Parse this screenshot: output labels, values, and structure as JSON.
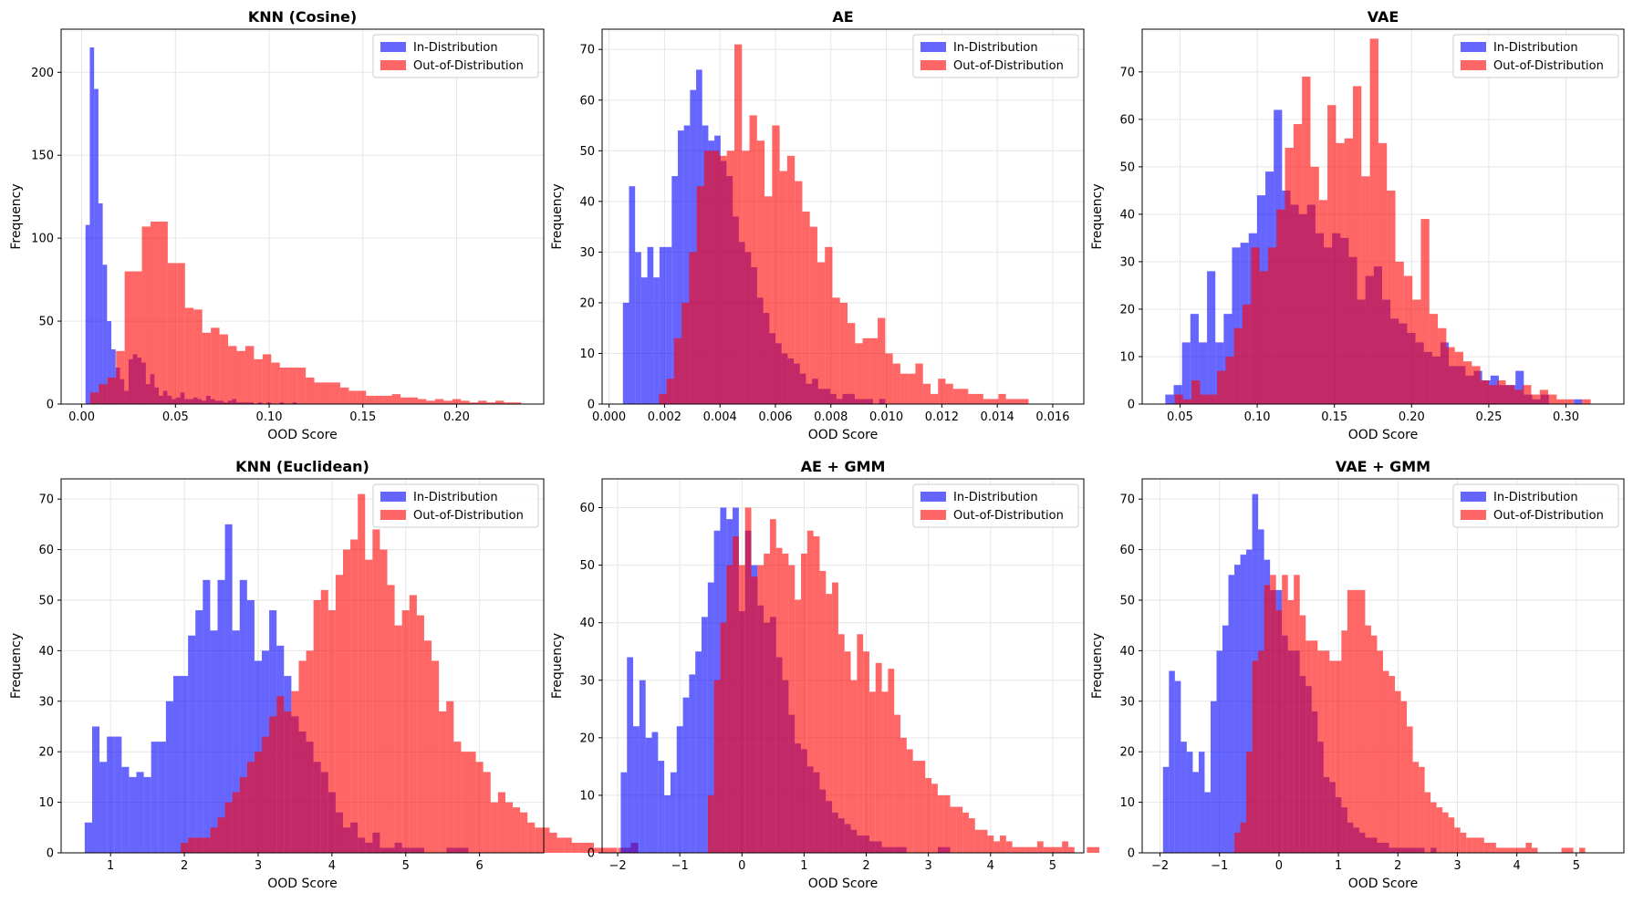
{
  "figure": {
    "legend_labels": [
      "In-Distribution",
      "Out-of-Distribution"
    ],
    "colors": {
      "in": "#0000ff",
      "out": "#ff0000",
      "overlap": "#c0245a",
      "grid": "#e6e6e6"
    },
    "bar_alpha": 0.6
  },
  "chart_data": [
    {
      "type": "bar",
      "title": "KNN (Cosine)",
      "xlabel": "OOD Score",
      "ylabel": "Frequency",
      "xlim": [
        -0.011,
        0.2465
      ],
      "ylim": [
        0,
        226
      ],
      "xticks": [
        0.0,
        0.05,
        0.1,
        0.15,
        0.2
      ],
      "xtick_labels": [
        "0.00",
        "0.05",
        "0.10",
        "0.15",
        "0.20"
      ],
      "yticks": [
        0,
        50,
        100,
        150,
        200
      ],
      "ytick_labels": [
        "0",
        "50",
        "100",
        "150",
        "200"
      ],
      "legend": "top-right",
      "grid": true,
      "series": [
        {
          "name": "In-Distribution",
          "start": 0.002,
          "width": 0.0023,
          "values": [
            108,
            215,
            190,
            121,
            84,
            50,
            33,
            22,
            15,
            8,
            27,
            30,
            28,
            25,
            12,
            18,
            10,
            5,
            8,
            5,
            3,
            4,
            7,
            3,
            3,
            4,
            3,
            2,
            5,
            3,
            2,
            2,
            1,
            2,
            3,
            1,
            1,
            1,
            1,
            0,
            1,
            0,
            1,
            0,
            0,
            1,
            0,
            0,
            1
          ]
        },
        {
          "name": "Out-of-Distribution",
          "start": 0.0045,
          "width": 0.0046,
          "values": [
            7,
            12,
            16,
            32,
            80,
            80,
            107,
            110,
            110,
            85,
            85,
            58,
            57,
            43,
            46,
            42,
            35,
            32,
            35,
            27,
            30,
            25,
            22,
            22,
            22,
            16,
            13,
            13,
            13,
            10,
            8,
            8,
            5,
            5,
            5,
            6,
            4,
            4,
            3,
            2,
            3,
            2,
            3,
            2,
            1,
            2,
            1,
            2,
            1,
            1
          ]
        }
      ]
    },
    {
      "type": "bar",
      "title": "AE",
      "xlabel": "OOD Score",
      "ylabel": "Frequency",
      "xlim": [
        -0.00025,
        0.01712
      ],
      "ylim": [
        0,
        74
      ],
      "xticks": [
        0.0,
        0.002,
        0.004,
        0.006,
        0.008,
        0.01,
        0.012,
        0.014,
        0.016
      ],
      "xtick_labels": [
        "0.000",
        "0.002",
        "0.004",
        "0.006",
        "0.008",
        "0.010",
        "0.012",
        "0.014",
        "0.016"
      ],
      "yticks": [
        0,
        10,
        20,
        30,
        40,
        50,
        60,
        70
      ],
      "ytick_labels": [
        "0",
        "10",
        "20",
        "30",
        "40",
        "50",
        "60",
        "70"
      ],
      "legend": "top-right",
      "grid": true,
      "series": [
        {
          "name": "In-Distribution",
          "start": 0.0005,
          "width": 0.00022,
          "values": [
            20,
            43,
            30,
            25,
            31,
            25,
            31,
            31,
            45,
            54,
            55,
            62,
            66,
            55,
            52,
            53,
            48,
            45,
            37,
            32,
            30,
            27,
            21,
            18,
            14,
            12,
            10,
            9,
            8,
            6,
            4,
            5,
            3,
            3,
            2,
            1,
            2,
            2,
            1,
            1,
            1,
            0,
            1
          ]
        },
        {
          "name": "Out-of-Distribution",
          "start": 0.0018,
          "width": 0.000272,
          "values": [
            2,
            5,
            13,
            20,
            30,
            43,
            50,
            50,
            49,
            50,
            71,
            50,
            57,
            52,
            41,
            55,
            46,
            49,
            44,
            38,
            35,
            28,
            31,
            21,
            20,
            16,
            12,
            13,
            13,
            17,
            10,
            8,
            6,
            6,
            8,
            4,
            2,
            5,
            4,
            3,
            3,
            2,
            2,
            1,
            1,
            2,
            1,
            1,
            1
          ]
        }
      ]
    },
    {
      "type": "bar",
      "title": "VAE",
      "xlabel": "OOD Score",
      "ylabel": "Frequency",
      "xlim": [
        0.0255,
        0.3375
      ],
      "ylim": [
        0,
        79
      ],
      "xticks": [
        0.05,
        0.1,
        0.15,
        0.2,
        0.25,
        0.3
      ],
      "xtick_labels": [
        "0.05",
        "0.10",
        "0.15",
        "0.20",
        "0.25",
        "0.30"
      ],
      "yticks": [
        0,
        10,
        20,
        30,
        40,
        50,
        60,
        70
      ],
      "ytick_labels": [
        "0",
        "10",
        "20",
        "30",
        "40",
        "50",
        "60",
        "70"
      ],
      "legend": "top-right",
      "grid": true,
      "series": [
        {
          "name": "In-Distribution",
          "start": 0.0405,
          "width": 0.0054,
          "values": [
            2,
            4,
            13,
            19,
            13,
            28,
            13,
            19,
            33,
            34,
            36,
            44,
            49,
            62,
            45,
            42,
            40,
            42,
            36,
            33,
            36,
            35,
            31,
            22,
            27,
            29,
            22,
            18,
            17,
            15,
            13,
            11,
            10,
            13,
            8,
            8,
            6,
            7,
            5,
            6,
            4,
            4,
            7,
            2,
            1,
            2,
            0,
            0,
            0,
            1
          ]
        },
        {
          "name": "Out-of-Distribution",
          "start": 0.0465,
          "width": 0.0055,
          "values": [
            2,
            1,
            5,
            2,
            2,
            7,
            10,
            16,
            21,
            33,
            28,
            33,
            41,
            54,
            59,
            69,
            50,
            43,
            63,
            55,
            56,
            67,
            48,
            77,
            55,
            45,
            30,
            27,
            22,
            39,
            19,
            16,
            12,
            11,
            9,
            8,
            5,
            4,
            5,
            4,
            3,
            4,
            2,
            3,
            2,
            1,
            1,
            0,
            1
          ]
        }
      ]
    },
    {
      "type": "bar",
      "title": "KNN (Euclidean)",
      "xlabel": "OOD Score",
      "ylabel": "Frequency",
      "xlim": [
        0.33,
        6.87
      ],
      "ylim": [
        0,
        74
      ],
      "xticks": [
        1,
        2,
        3,
        4,
        5,
        6
      ],
      "xtick_labels": [
        "1",
        "2",
        "3",
        "4",
        "5",
        "6"
      ],
      "yticks": [
        0,
        10,
        20,
        30,
        40,
        50,
        60,
        70
      ],
      "ytick_labels": [
        "0",
        "10",
        "20",
        "30",
        "40",
        "50",
        "60",
        "70"
      ],
      "legend": "top-right",
      "grid": true,
      "series": [
        {
          "name": "In-Distribution",
          "start": 0.65,
          "width": 0.1,
          "values": [
            6,
            25,
            18,
            23,
            23,
            17,
            15,
            16,
            15,
            22,
            22,
            30,
            35,
            35,
            43,
            48,
            54,
            44,
            54,
            65,
            44,
            54,
            50,
            38,
            40,
            48,
            41,
            35,
            27,
            24,
            22,
            18,
            16,
            12,
            8,
            5,
            6,
            3,
            2,
            4,
            1,
            1,
            2,
            1,
            1,
            1,
            0,
            0,
            0,
            1,
            1,
            1
          ]
        },
        {
          "name": "Out-of-Distribution",
          "start": 1.95,
          "width": 0.1,
          "values": [
            2,
            3,
            3,
            3,
            5,
            7,
            10,
            12,
            15,
            18,
            20,
            23,
            27,
            31,
            28,
            32,
            38,
            40,
            50,
            52,
            48,
            55,
            60,
            62,
            71,
            58,
            64,
            60,
            53,
            45,
            48,
            51,
            47,
            42,
            38,
            28,
            30,
            22,
            20,
            20,
            18,
            16,
            10,
            12,
            10,
            9,
            8,
            6,
            5,
            5,
            4,
            3,
            3,
            2,
            2,
            2,
            1,
            1,
            1,
            1,
            1,
            2
          ]
        }
      ]
    },
    {
      "type": "bar",
      "title": "AE + GMM",
      "xlabel": "OOD Score",
      "ylabel": "Frequency",
      "xlim": [
        -2.25,
        5.5
      ],
      "ylim": [
        0,
        65
      ],
      "xticks": [
        -2,
        -1,
        0,
        1,
        2,
        3,
        4,
        5
      ],
      "xtick_labels": [
        "−2",
        "−1",
        "0",
        "1",
        "2",
        "3",
        "4",
        "5"
      ],
      "yticks": [
        0,
        10,
        20,
        30,
        40,
        50,
        60
      ],
      "ytick_labels": [
        "0",
        "10",
        "20",
        "30",
        "40",
        "50",
        "60"
      ],
      "legend": "top-right",
      "grid": true,
      "series": [
        {
          "name": "In-Distribution",
          "start": -1.95,
          "width": 0.1,
          "values": [
            14,
            34,
            22,
            30,
            20,
            21,
            16,
            10,
            14,
            22,
            27,
            31,
            35,
            41,
            47,
            56,
            60,
            58,
            60,
            42,
            56,
            50,
            43,
            40,
            41,
            34,
            30,
            24,
            19,
            18,
            15,
            14,
            11,
            9,
            7,
            6,
            5,
            4,
            3,
            3,
            2,
            2,
            1,
            1,
            1,
            1,
            0,
            0,
            0,
            0,
            0,
            1,
            1
          ]
        },
        {
          "name": "Out-of-Distribution",
          "start": -0.55,
          "width": 0.1,
          "values": [
            10,
            30,
            40,
            50,
            55,
            50,
            60,
            48,
            50,
            52,
            58,
            53,
            52,
            50,
            44,
            52,
            56,
            55,
            49,
            45,
            47,
            38,
            35,
            30,
            38,
            35,
            28,
            33,
            28,
            32,
            24,
            20,
            18,
            16,
            16,
            13,
            12,
            10,
            10,
            8,
            8,
            7,
            6,
            4,
            4,
            3,
            2,
            3,
            2,
            1,
            1,
            1,
            1,
            2,
            1,
            1,
            1,
            2,
            1,
            0,
            0,
            1,
            1
          ]
        }
      ]
    },
    {
      "type": "bar",
      "title": "VAE + GMM",
      "xlabel": "OOD Score",
      "ylabel": "Frequency",
      "xlim": [
        -2.3,
        5.8
      ],
      "ylim": [
        0,
        74
      ],
      "xticks": [
        -2,
        -1,
        0,
        1,
        2,
        3,
        4,
        5
      ],
      "xtick_labels": [
        "−2",
        "−1",
        "0",
        "1",
        "2",
        "3",
        "4",
        "5"
      ],
      "yticks": [
        0,
        10,
        20,
        30,
        40,
        50,
        60,
        70
      ],
      "ytick_labels": [
        "0",
        "10",
        "20",
        "30",
        "40",
        "50",
        "60",
        "70"
      ],
      "legend": "top-right",
      "grid": true,
      "series": [
        {
          "name": "In-Distribution",
          "start": -1.95,
          "width": 0.1,
          "values": [
            17,
            36,
            34,
            22,
            20,
            16,
            20,
            12,
            30,
            40,
            45,
            55,
            57,
            59,
            60,
            71,
            64,
            58,
            52,
            52,
            43,
            40,
            40,
            35,
            33,
            28,
            22,
            15,
            14,
            11,
            9,
            6,
            5,
            4,
            3,
            3,
            2,
            2,
            1,
            1,
            1,
            1,
            1,
            1,
            0,
            1
          ]
        },
        {
          "name": "Out-of-Distribution",
          "start": -0.75,
          "width": 0.1,
          "values": [
            4,
            6,
            20,
            38,
            40,
            53,
            55,
            48,
            55,
            50,
            55,
            47,
            42,
            42,
            40,
            40,
            38,
            38,
            44,
            52,
            52,
            52,
            45,
            43,
            40,
            36,
            35,
            32,
            30,
            25,
            18,
            17,
            12,
            10,
            9,
            8,
            7,
            5,
            4,
            3,
            3,
            3,
            2,
            2,
            1,
            1,
            1,
            1,
            1,
            2,
            1,
            0,
            0,
            0,
            0,
            1,
            1,
            0,
            1
          ]
        }
      ]
    }
  ]
}
